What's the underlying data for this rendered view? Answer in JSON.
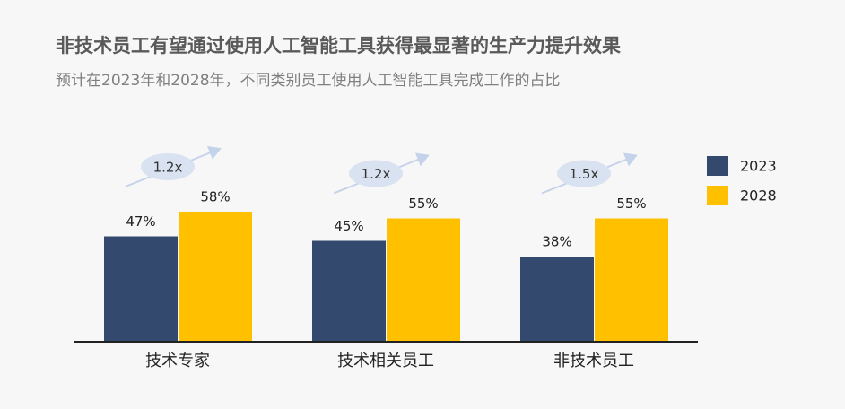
{
  "chart_data": {
    "type": "bar",
    "title": "非技术员工有望通过使用人工智能工具获得最显著的生产力提升效果",
    "subtitle": "预计在2023年和2028年，不同类别员工使用人工智能工具完成工作的占比",
    "categories": [
      "技术专家",
      "技术相关员工",
      "非技术员工"
    ],
    "series": [
      {
        "name": "2023",
        "color": "#34496e",
        "values": [
          47,
          45,
          38
        ],
        "value_labels": [
          "47%",
          "45%",
          "38%"
        ]
      },
      {
        "name": "2028",
        "color": "#ffc000",
        "values": [
          58,
          55,
          55
        ],
        "value_labels": [
          "58%",
          "55%",
          "55%"
        ]
      }
    ],
    "annotations": [
      "1.2x",
      "1.2x",
      "1.5x"
    ],
    "ylim": [
      0,
      100
    ],
    "legend": "right"
  }
}
